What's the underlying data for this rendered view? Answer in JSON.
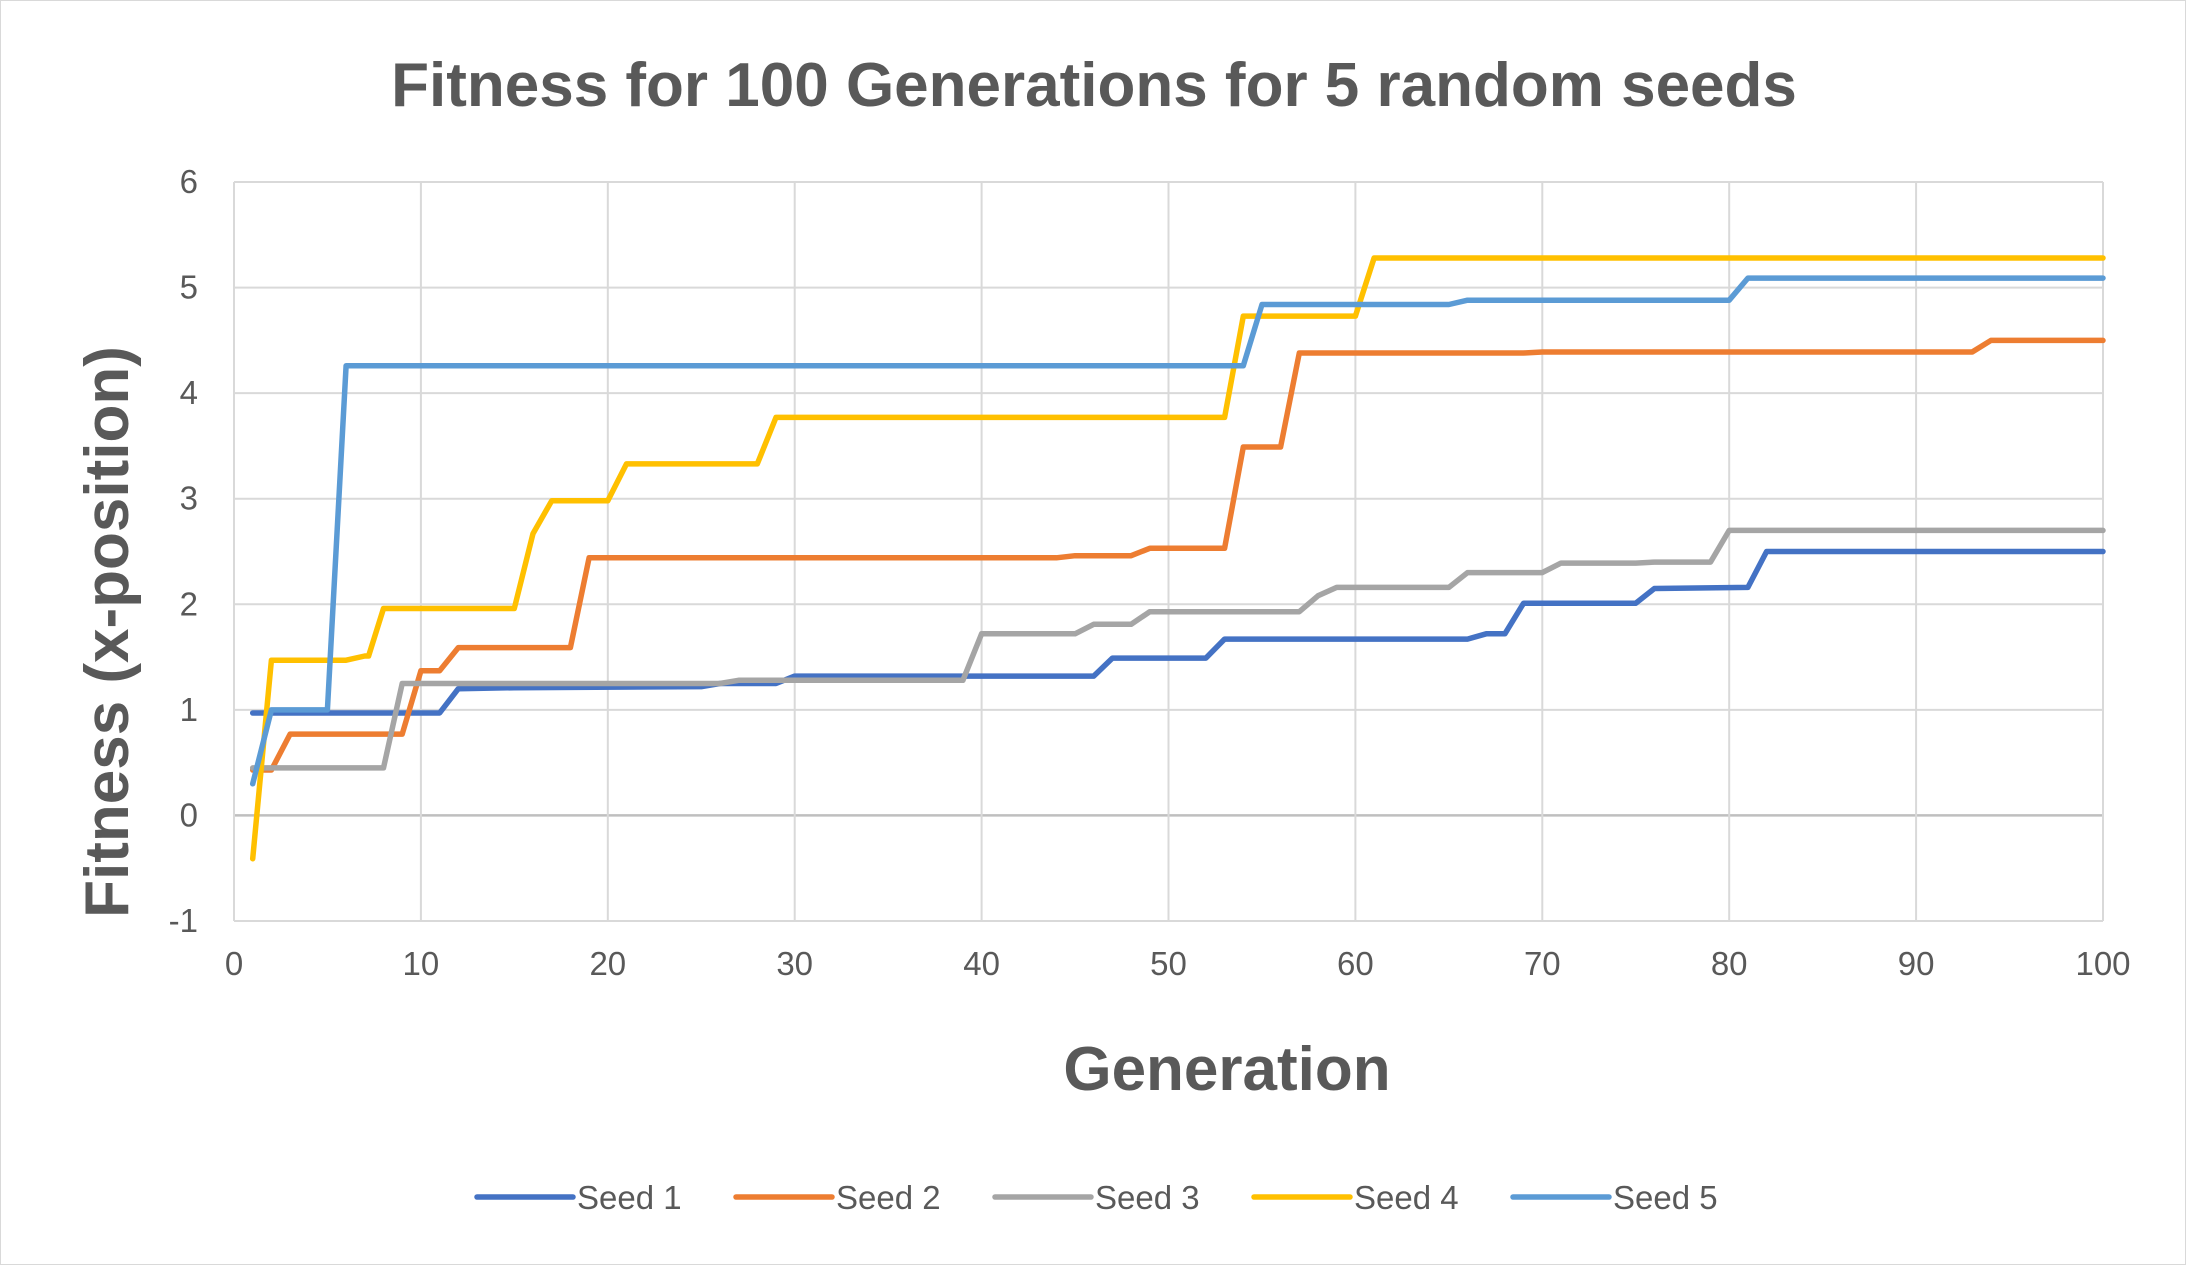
{
  "chart_data": {
    "type": "line",
    "title": "Fitness for 100 Generations for 5 random seeds",
    "xlabel": "Generation",
    "ylabel": "Fitness (x-position)",
    "xlim": [
      0,
      100
    ],
    "ylim": [
      -1,
      6
    ],
    "xticks": [
      0,
      10,
      20,
      30,
      40,
      50,
      60,
      70,
      80,
      90,
      100
    ],
    "yticks": [
      -1,
      0,
      1,
      2,
      3,
      4,
      5,
      6
    ],
    "grid": true,
    "legend_position": "bottom",
    "series": [
      {
        "name": "Seed 1",
        "color": "#4472C4",
        "points": [
          [
            1,
            0.97
          ],
          [
            10,
            0.97
          ],
          [
            11,
            0.97
          ],
          [
            12,
            1.2
          ],
          [
            15,
            1.21
          ],
          [
            25,
            1.22
          ],
          [
            26,
            1.25
          ],
          [
            29,
            1.25
          ],
          [
            30,
            1.32
          ],
          [
            46,
            1.32
          ],
          [
            47,
            1.49
          ],
          [
            52,
            1.49
          ],
          [
            53,
            1.67
          ],
          [
            66,
            1.67
          ],
          [
            67,
            1.72
          ],
          [
            68,
            1.72
          ],
          [
            69,
            2.01
          ],
          [
            75,
            2.01
          ],
          [
            76,
            2.15
          ],
          [
            81,
            2.16
          ],
          [
            82,
            2.5
          ],
          [
            100,
            2.5
          ]
        ]
      },
      {
        "name": "Seed 2",
        "color": "#ED7D31",
        "points": [
          [
            1,
            0.43
          ],
          [
            2,
            0.43
          ],
          [
            3,
            0.77
          ],
          [
            9,
            0.77
          ],
          [
            10,
            1.37
          ],
          [
            11,
            1.37
          ],
          [
            12,
            1.59
          ],
          [
            18,
            1.59
          ],
          [
            19,
            2.44
          ],
          [
            44,
            2.44
          ],
          [
            45,
            2.46
          ],
          [
            48,
            2.46
          ],
          [
            49,
            2.53
          ],
          [
            53,
            2.53
          ],
          [
            54,
            3.49
          ],
          [
            56,
            3.49
          ],
          [
            57,
            4.38
          ],
          [
            69,
            4.38
          ],
          [
            70,
            4.39
          ],
          [
            93,
            4.39
          ],
          [
            94,
            4.5
          ],
          [
            100,
            4.5
          ]
        ]
      },
      {
        "name": "Seed 3",
        "color": "#A5A5A5",
        "points": [
          [
            1,
            0.45
          ],
          [
            8,
            0.45
          ],
          [
            9,
            1.25
          ],
          [
            26,
            1.25
          ],
          [
            27,
            1.28
          ],
          [
            39,
            1.28
          ],
          [
            40,
            1.72
          ],
          [
            45,
            1.72
          ],
          [
            46,
            1.81
          ],
          [
            48,
            1.81
          ],
          [
            49,
            1.93
          ],
          [
            57,
            1.93
          ],
          [
            58,
            2.08
          ],
          [
            59,
            2.16
          ],
          [
            65,
            2.16
          ],
          [
            66,
            2.3
          ],
          [
            70,
            2.3
          ],
          [
            71,
            2.39
          ],
          [
            75,
            2.39
          ],
          [
            76,
            2.4
          ],
          [
            79,
            2.4
          ],
          [
            80,
            2.7
          ],
          [
            100,
            2.7
          ]
        ]
      },
      {
        "name": "Seed 4",
        "color": "#FFC000",
        "points": [
          [
            1,
            -0.41
          ],
          [
            2,
            1.47
          ],
          [
            6,
            1.47
          ],
          [
            7,
            1.51
          ],
          [
            7.2,
            1.51
          ],
          [
            8,
            1.96
          ],
          [
            15,
            1.96
          ],
          [
            16,
            2.67
          ],
          [
            17,
            2.98
          ],
          [
            20,
            2.98
          ],
          [
            21,
            3.33
          ],
          [
            28,
            3.33
          ],
          [
            29,
            3.77
          ],
          [
            53,
            3.77
          ],
          [
            54,
            4.73
          ],
          [
            60,
            4.73
          ],
          [
            61,
            5.28
          ],
          [
            100,
            5.28
          ]
        ]
      },
      {
        "name": "Seed 5",
        "color": "#5B9BD5",
        "points": [
          [
            1,
            0.3
          ],
          [
            2,
            1.0
          ],
          [
            5,
            1.0
          ],
          [
            6,
            4.26
          ],
          [
            54,
            4.26
          ],
          [
            55,
            4.84
          ],
          [
            65,
            4.84
          ],
          [
            66,
            4.88
          ],
          [
            80,
            4.88
          ],
          [
            81,
            5.09
          ],
          [
            100,
            5.09
          ]
        ]
      }
    ]
  }
}
